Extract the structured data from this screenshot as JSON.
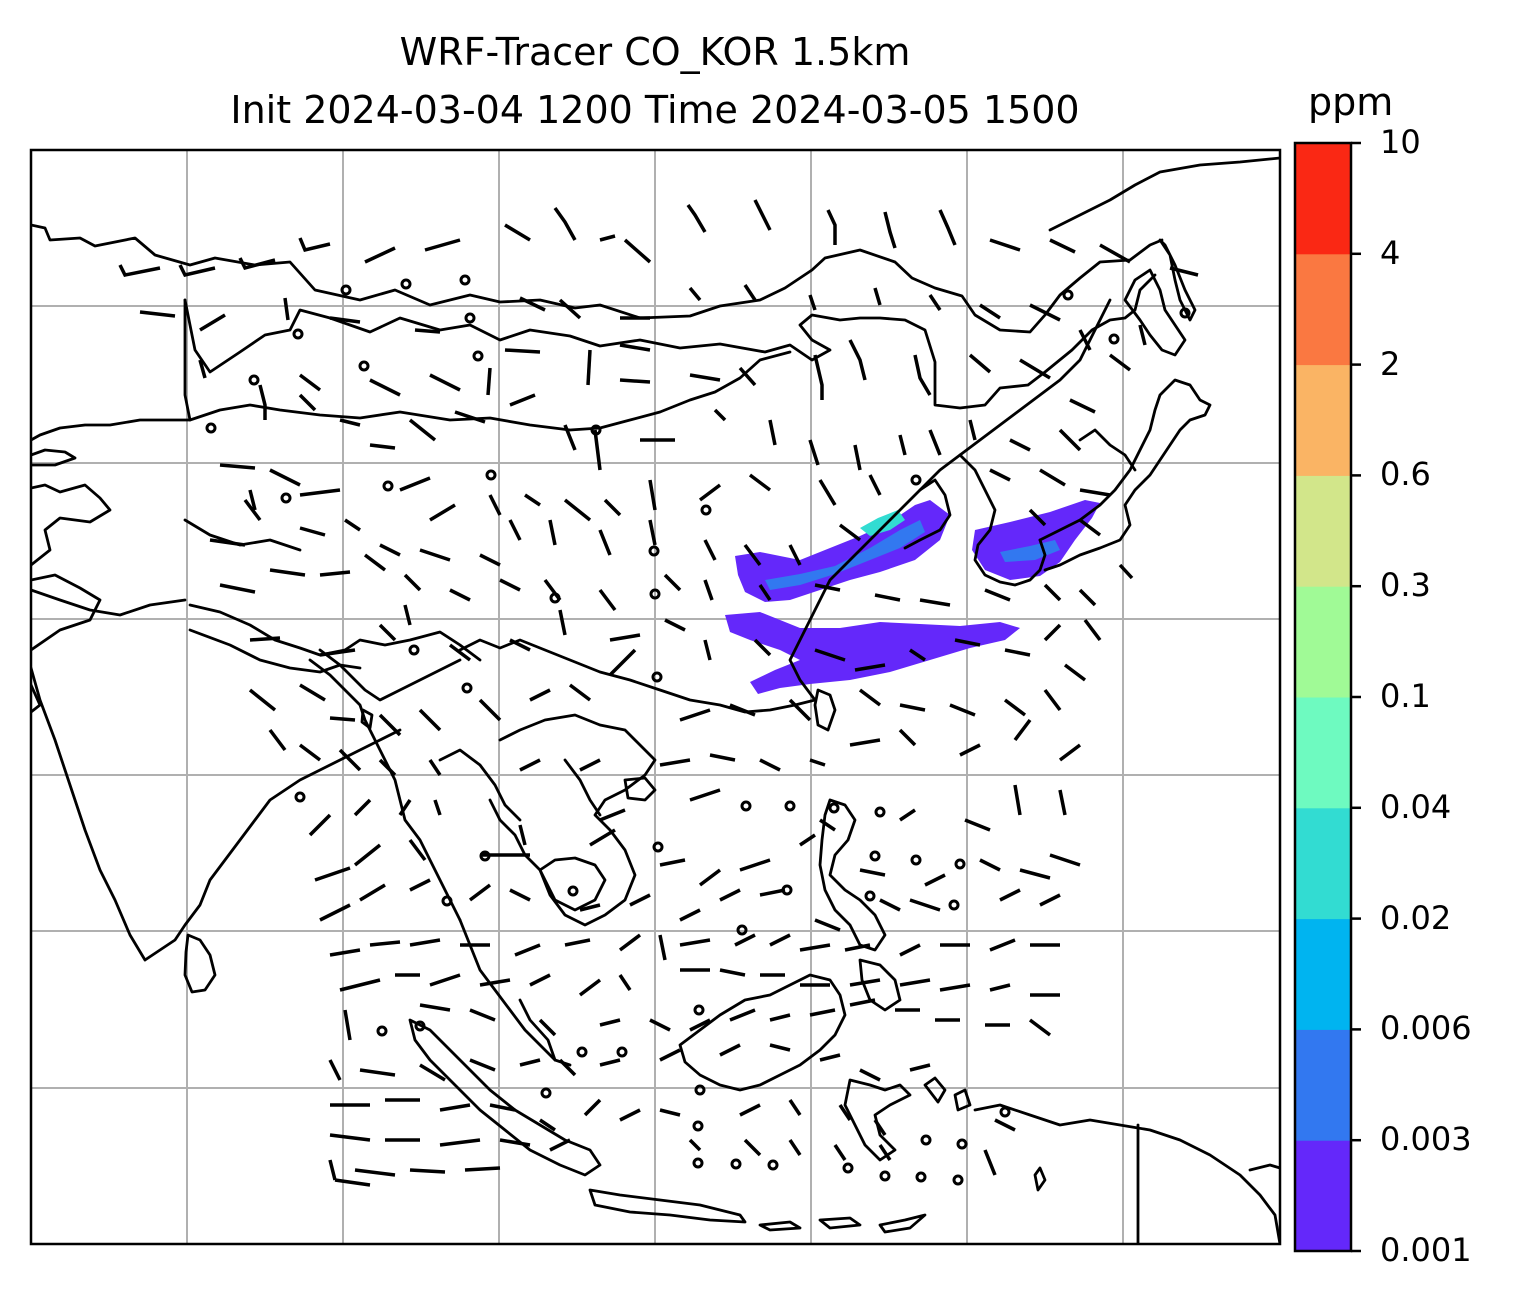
{
  "title": {
    "line1": "WRF-Tracer CO_KOR 1.5km",
    "line2": "Init 2024-03-04 1200 Time 2024-03-05 1500"
  },
  "colorbar": {
    "unit": "ppm",
    "levels": [
      "0.001",
      "0.003",
      "0.006",
      "0.02",
      "0.04",
      "0.1",
      "0.3",
      "0.6",
      "2",
      "4",
      "10"
    ],
    "colors": [
      "#6428fa",
      "#3278f0",
      "#00b4f0",
      "#32dcd2",
      "#6efac0",
      "#a0fa96",
      "#d2e68a",
      "#fab464",
      "#fa7841",
      "#fa2814"
    ]
  },
  "map": {
    "background": "#ffffff",
    "gridlines": true,
    "plume_colors": {
      "low": "#6428fa",
      "mid": "#3278f0",
      "high": "#32dcd2"
    }
  }
}
